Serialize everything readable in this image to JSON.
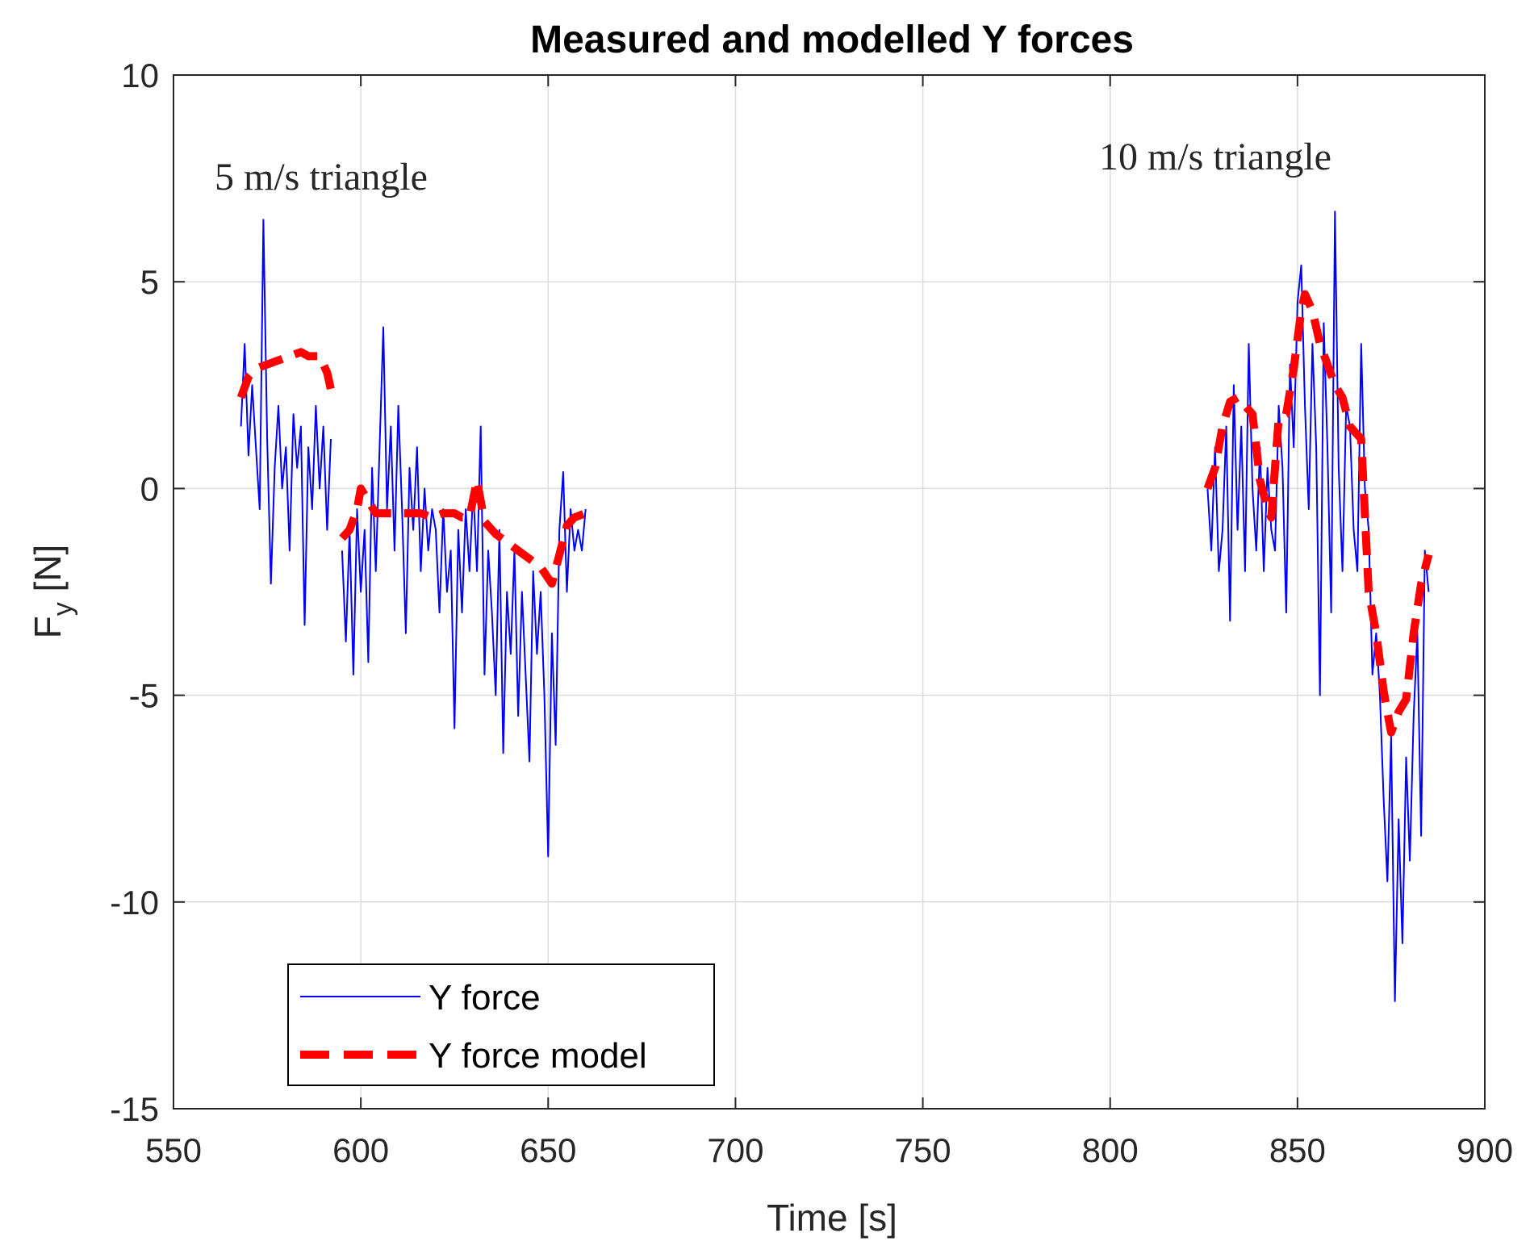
{
  "chart_data": {
    "type": "line",
    "title": "Measured and modelled Y forces",
    "xlabel": "Time [s]",
    "ylabel_main": "F",
    "ylabel_sub": "y",
    "ylabel_unit": " [N]",
    "xlim": [
      550,
      900
    ],
    "ylim": [
      -15,
      10
    ],
    "xticks": [
      550,
      600,
      650,
      700,
      750,
      800,
      850,
      900
    ],
    "yticks": [
      -15,
      -10,
      -5,
      0,
      5,
      10
    ],
    "xtick_labels": [
      "550",
      "600",
      "650",
      "700",
      "750",
      "800",
      "850",
      "900"
    ],
    "ytick_labels": [
      "-15",
      "-10",
      "-5",
      "0",
      "5",
      "10"
    ],
    "grid": true,
    "legend_position": "bottom-left",
    "annotations": [
      {
        "text": "5 m/s triangle",
        "x": 569,
        "y": 7.5
      },
      {
        "text": "10 m/s triangle",
        "x": 805,
        "y": 7.8
      }
    ],
    "series": [
      {
        "name": "Y force",
        "color": "#0000ff",
        "style": "solid",
        "segments": [
          {
            "x": [
              568,
              569,
              570,
              571,
              572,
              573,
              574,
              575,
              576,
              577,
              578,
              579,
              580,
              581,
              582,
              583,
              584,
              585,
              586,
              587,
              588,
              589,
              590,
              591,
              592
            ],
            "y": [
              1.5,
              3.5,
              0.8,
              2.5,
              1.0,
              -0.5,
              6.5,
              1.2,
              -2.3,
              0.5,
              2.0,
              0.0,
              1.0,
              -1.5,
              1.8,
              0.5,
              1.5,
              -3.3,
              1.0,
              -0.5,
              2.0,
              0.0,
              1.5,
              -1.0,
              1.2
            ]
          },
          {
            "x": [
              595,
              596,
              597,
              598,
              599,
              600,
              601,
              602,
              603,
              604,
              605,
              606,
              607,
              608,
              609,
              610,
              611,
              612,
              613,
              614,
              615,
              616,
              617,
              618,
              619,
              620,
              621,
              622,
              623,
              624,
              625,
              626,
              627,
              628,
              629,
              630,
              631,
              632,
              633,
              634,
              635,
              636,
              637,
              638,
              639,
              640,
              641,
              642,
              643,
              644,
              645,
              646,
              647,
              648,
              649,
              650,
              651,
              652,
              653,
              654,
              655,
              656,
              657,
              658,
              659,
              660
            ],
            "y": [
              -1.5,
              -3.7,
              -1.0,
              -4.5,
              -0.5,
              -2.5,
              -1.0,
              -4.2,
              0.5,
              -2.0,
              1.0,
              3.9,
              -0.5,
              1.5,
              -1.5,
              2.0,
              -0.5,
              -3.5,
              0.5,
              -1.0,
              1.0,
              -2.0,
              0.0,
              -1.5,
              -0.5,
              -1.0,
              -3.0,
              -0.5,
              -2.5,
              -1.5,
              -5.8,
              -1.0,
              -3.0,
              -0.5,
              -2.0,
              0.0,
              -2.0,
              1.5,
              -4.5,
              -1.5,
              -3.0,
              -5.0,
              -1.0,
              -6.4,
              -2.5,
              -4.0,
              -1.5,
              -5.5,
              -2.5,
              -4.5,
              -6.6,
              -2.0,
              -4.0,
              -2.5,
              -5.0,
              -8.9,
              -3.5,
              -6.2,
              -1.0,
              0.4,
              -2.5,
              -0.5,
              -1.5,
              -1.0,
              -1.5,
              -0.5
            ]
          },
          {
            "x": [
              826,
              827,
              828,
              829,
              830,
              831,
              832,
              833,
              834,
              835,
              836,
              837,
              838,
              839,
              840,
              841,
              842,
              843,
              844,
              845,
              846,
              847,
              848,
              849,
              850,
              851,
              852,
              853,
              854,
              855,
              856,
              857,
              858,
              859,
              860,
              861,
              862,
              863,
              864,
              865,
              866,
              867,
              868,
              869,
              870,
              871,
              872,
              873,
              874,
              875,
              876,
              877,
              878,
              879,
              880,
              881,
              882,
              883,
              884,
              885
            ],
            "y": [
              0.0,
              -1.5,
              1.0,
              -2.0,
              -1.0,
              1.5,
              -3.2,
              2.5,
              -1.0,
              1.5,
              -2.0,
              3.5,
              0.0,
              -1.5,
              1.0,
              -2.0,
              0.5,
              -1.0,
              -1.5,
              2.0,
              0.5,
              -3.0,
              3.0,
              1.0,
              4.5,
              5.4,
              2.0,
              -0.5,
              3.5,
              1.0,
              -5.0,
              4.0,
              1.0,
              -3.0,
              6.7,
              0.5,
              -2.0,
              2.0,
              1.5,
              -1.0,
              -2.0,
              3.5,
              0.0,
              -1.0,
              -4.5,
              -3.5,
              -5.0,
              -7.5,
              -9.5,
              -6.0,
              -12.4,
              -8.0,
              -11.0,
              -6.5,
              -9.0,
              -5.5,
              -3.5,
              -8.4,
              -1.5,
              -2.5
            ]
          }
        ]
      },
      {
        "name": "Y force model",
        "color": "#ff0000",
        "style": "dashed",
        "segments": [
          {
            "x": [
              568,
              570,
              572,
              575,
              578,
              581,
              584,
              586,
              589,
              591,
              592
            ],
            "y": [
              2.2,
              2.7,
              2.9,
              3.0,
              3.1,
              3.2,
              3.3,
              3.2,
              3.2,
              2.8,
              2.4
            ]
          },
          {
            "x": [
              595,
              597,
              599,
              600,
              602,
              604,
              607,
              610,
              613,
              616,
              619,
              622,
              625,
              627,
              629,
              631,
              633,
              636,
              639,
              642,
              645,
              648,
              651,
              653,
              655,
              657,
              660
            ],
            "y": [
              -1.2,
              -1.0,
              -0.5,
              0.0,
              -0.3,
              -0.6,
              -0.6,
              -0.6,
              -0.6,
              -0.6,
              -0.7,
              -0.6,
              -0.6,
              -0.7,
              -0.7,
              0.2,
              -0.8,
              -1.1,
              -1.3,
              -1.5,
              -1.7,
              -1.9,
              -2.3,
              -1.6,
              -0.9,
              -0.7,
              -0.6
            ]
          },
          {
            "x": [
              826,
              828,
              830,
              832,
              834,
              836,
              838,
              840,
              842,
              843,
              845,
              847,
              849,
              851,
              852,
              854,
              856,
              858,
              860,
              862,
              864,
              867,
              869,
              871,
              873,
              875,
              877,
              879,
              881,
              883,
              885
            ],
            "y": [
              0.0,
              0.5,
              1.5,
              2.1,
              2.2,
              2.0,
              1.8,
              0.2,
              -0.5,
              -0.7,
              1.7,
              1.8,
              2.9,
              4.3,
              4.7,
              4.3,
              3.5,
              3.0,
              2.5,
              2.2,
              1.5,
              1.2,
              -2.5,
              -3.5,
              -4.9,
              -5.9,
              -5.4,
              -5.1,
              -3.5,
              -2.3,
              -1.6
            ]
          }
        ]
      }
    ]
  }
}
